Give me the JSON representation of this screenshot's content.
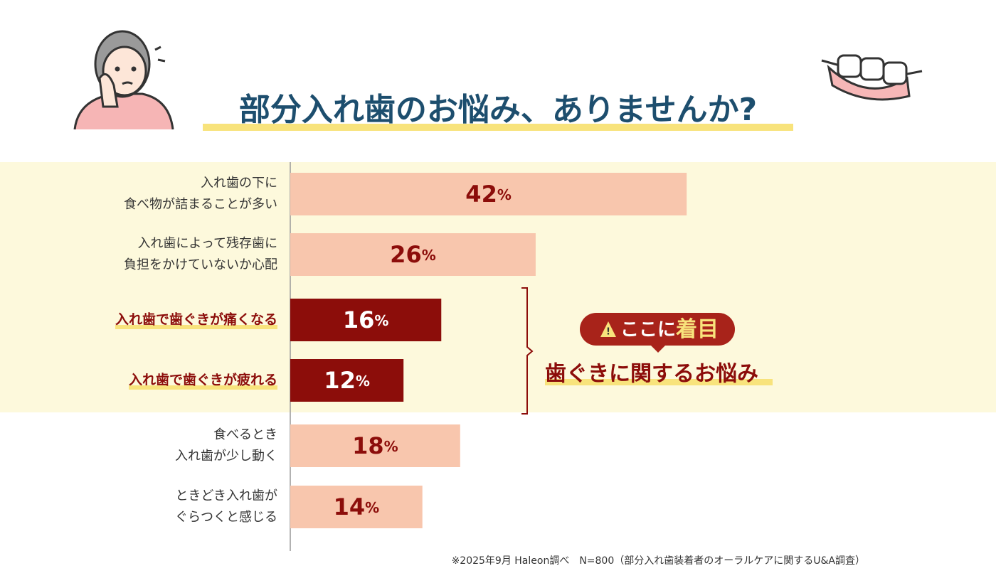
{
  "chart_data": {
    "type": "bar",
    "orientation": "horizontal",
    "title": "部分入れ歯のお悩み、ありませんか?",
    "categories": [
      [
        "入れ歯の下に",
        "食べ物が詰まることが多い"
      ],
      [
        "入れ歯によって残存歯に",
        "負担をかけていないか心配"
      ],
      [
        "入れ歯で歯ぐきが痛くなる"
      ],
      [
        "入れ歯で歯ぐきが疲れる"
      ],
      [
        "食べるとき",
        "入れ歯が少し動く"
      ],
      [
        "ときどき入れ歯が",
        "ぐらつくと感じる"
      ]
    ],
    "values": [
      42,
      26,
      16,
      12,
      18,
      14
    ],
    "value_labels": [
      "42%",
      "26%",
      "16%",
      "12%",
      "18%",
      "14%"
    ],
    "highlight": [
      false,
      false,
      true,
      true,
      false,
      false
    ],
    "color": "#f8c6ad",
    "highlight_color": "#8c0d0a",
    "xlim": [
      0,
      60
    ],
    "annotation": {
      "badge": [
        "ここに",
        "着目"
      ],
      "text": "歯ぐきに関するお悩み"
    },
    "footnote": "※2025年9月 Haleon調べ　N=800（部分入れ歯装着者のオーラルケアに関するU&A調査）"
  }
}
